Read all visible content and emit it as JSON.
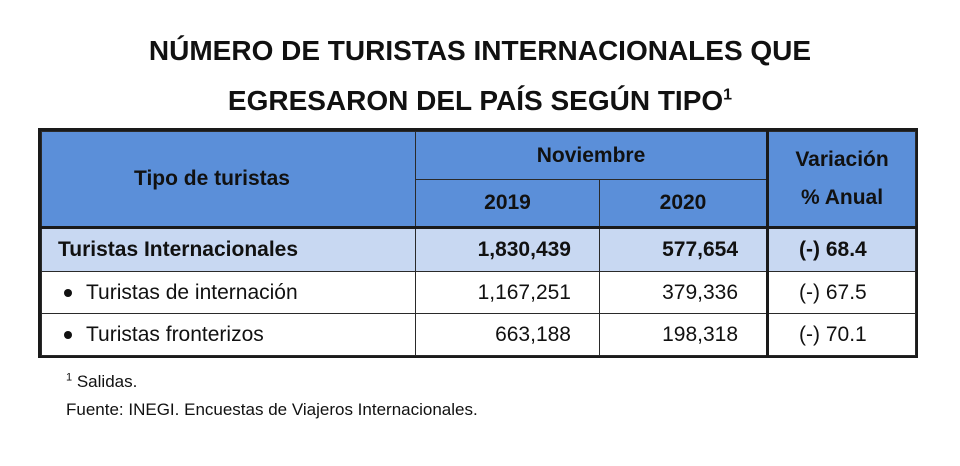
{
  "title": {
    "line1": "NÚMERO DE TURISTAS INTERNACIONALES QUE",
    "line2": "EGRESARON DEL PAÍS SEGÚN TIPO",
    "superscript": "1"
  },
  "table": {
    "header": {
      "type_label": "Tipo de turistas",
      "month_label": "Noviembre",
      "year1": "2019",
      "year2": "2020",
      "variation_line1": "Variación",
      "variation_line2": "% Anual"
    },
    "rows": [
      {
        "label": "Turistas Internacionales",
        "y2019": "1,830,439",
        "y2020": "577,654",
        "variation": "(-) 68.4"
      },
      {
        "label": "Turistas de internación",
        "y2019": "1,167,251",
        "y2020": "379,336",
        "variation": "(-) 67.5"
      },
      {
        "label": "Turistas fronterizos",
        "y2019": "663,188",
        "y2020": "198,318",
        "variation": "(-) 70.1"
      }
    ]
  },
  "notes": {
    "footnote_mark": "1",
    "footnote_text": " Salidas.",
    "source": "Fuente: INEGI. Encuestas de Viajeros Internacionales."
  },
  "colors": {
    "header_bg": "#5b8fd9",
    "total_row_bg": "#c8d8f2"
  }
}
